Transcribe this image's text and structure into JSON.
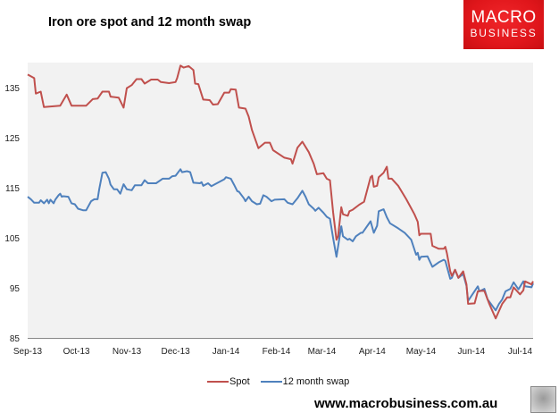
{
  "title": "Iron ore spot and 12 month swap",
  "logo": {
    "line1": "MACRO",
    "line2": "BUSINESS",
    "color": "#e31b1f"
  },
  "footer": {
    "url": "www.macrobusiness.com.au"
  },
  "chart_data": {
    "type": "line",
    "title": "Iron ore spot and 12 month swap",
    "xlabel": "",
    "ylabel": "",
    "xlim": [
      "2013-09-01",
      "2014-07-09"
    ],
    "ylim": [
      85,
      140
    ],
    "yticks": [
      85,
      95,
      105,
      115,
      125,
      135
    ],
    "xticks": [
      {
        "date": "2013-09-01",
        "label": "Sep-13"
      },
      {
        "date": "2013-10-01",
        "label": "Oct-13"
      },
      {
        "date": "2013-11-01",
        "label": "Nov-13"
      },
      {
        "date": "2013-12-01",
        "label": "Dec-13"
      },
      {
        "date": "2014-01-01",
        "label": "Jan-14"
      },
      {
        "date": "2014-02-01",
        "label": "Feb-14"
      },
      {
        "date": "2014-03-01",
        "label": "Mar-14"
      },
      {
        "date": "2014-04-01",
        "label": "Apr-14"
      },
      {
        "date": "2014-05-01",
        "label": "May-14"
      },
      {
        "date": "2014-06-01",
        "label": "Jun-14"
      },
      {
        "date": "2014-07-01",
        "label": "Jul-14"
      }
    ],
    "grid": false,
    "plot_background": "#f2f2f2",
    "legend_position": "bottom",
    "series": [
      {
        "name": "Spot",
        "color": "#c0504d",
        "points": [
          [
            "2013-09-01",
            137.6
          ],
          [
            "2013-09-05",
            136.9
          ],
          [
            "2013-09-06",
            133.8
          ],
          [
            "2013-09-09",
            134.2
          ],
          [
            "2013-09-11",
            131.1
          ],
          [
            "2013-09-21",
            131.4
          ],
          [
            "2013-09-25",
            133.6
          ],
          [
            "2013-09-28",
            131.4
          ],
          [
            "2013-10-07",
            131.4
          ],
          [
            "2013-10-11",
            132.7
          ],
          [
            "2013-10-14",
            132.8
          ],
          [
            "2013-10-17",
            134.2
          ],
          [
            "2013-10-21",
            134.2
          ],
          [
            "2013-10-22",
            133.2
          ],
          [
            "2013-10-27",
            133.0
          ],
          [
            "2013-10-30",
            131.0
          ],
          [
            "2013-11-01",
            134.9
          ],
          [
            "2013-11-04",
            135.5
          ],
          [
            "2013-11-07",
            136.7
          ],
          [
            "2013-11-10",
            136.7
          ],
          [
            "2013-11-12",
            135.8
          ],
          [
            "2013-11-16",
            136.6
          ],
          [
            "2013-11-20",
            136.6
          ],
          [
            "2013-11-22",
            136.1
          ],
          [
            "2013-11-27",
            135.9
          ],
          [
            "2013-12-01",
            136.1
          ],
          [
            "2013-12-02",
            136.9
          ],
          [
            "2013-12-04",
            139.4
          ],
          [
            "2013-12-06",
            139.0
          ],
          [
            "2013-12-09",
            139.3
          ],
          [
            "2013-12-12",
            138.5
          ],
          [
            "2013-12-13",
            135.8
          ],
          [
            "2013-12-15",
            135.7
          ],
          [
            "2013-12-18",
            132.6
          ],
          [
            "2013-12-22",
            132.5
          ],
          [
            "2013-12-24",
            131.6
          ],
          [
            "2013-12-27",
            131.7
          ],
          [
            "2013-12-31",
            134.0
          ],
          [
            "2014-01-03",
            134.0
          ],
          [
            "2014-01-04",
            134.7
          ],
          [
            "2014-01-07",
            134.6
          ],
          [
            "2014-01-09",
            131.0
          ],
          [
            "2014-01-13",
            130.8
          ],
          [
            "2014-01-15",
            129.2
          ],
          [
            "2014-01-17",
            126.5
          ],
          [
            "2014-01-21",
            122.9
          ],
          [
            "2014-01-25",
            124.0
          ],
          [
            "2014-01-28",
            124.0
          ],
          [
            "2014-01-30",
            122.5
          ],
          [
            "2014-02-06",
            121.0
          ],
          [
            "2014-02-10",
            120.7
          ],
          [
            "2014-02-11",
            119.8
          ],
          [
            "2014-02-14",
            123.0
          ],
          [
            "2014-02-17",
            124.2
          ],
          [
            "2014-02-21",
            122.1
          ],
          [
            "2014-02-24",
            119.8
          ],
          [
            "2014-02-26",
            117.7
          ],
          [
            "2014-03-02",
            117.9
          ],
          [
            "2014-03-04",
            116.8
          ],
          [
            "2014-03-06",
            116.5
          ],
          [
            "2014-03-08",
            110.0
          ],
          [
            "2014-03-10",
            104.6
          ],
          [
            "2014-03-11",
            105.3
          ],
          [
            "2014-03-13",
            111.1
          ],
          [
            "2014-03-14",
            109.7
          ],
          [
            "2014-03-17",
            109.4
          ],
          [
            "2014-03-18",
            110.3
          ],
          [
            "2014-03-20",
            110.6
          ],
          [
            "2014-03-24",
            111.6
          ],
          [
            "2014-03-27",
            112.2
          ],
          [
            "2014-03-31",
            117.1
          ],
          [
            "2014-04-01",
            117.4
          ],
          [
            "2014-04-02",
            115.2
          ],
          [
            "2014-04-04",
            115.4
          ],
          [
            "2014-04-05",
            117.1
          ],
          [
            "2014-04-08",
            118.0
          ],
          [
            "2014-04-10",
            119.2
          ],
          [
            "2014-04-11",
            116.8
          ],
          [
            "2014-04-13",
            116.8
          ],
          [
            "2014-04-17",
            115.4
          ],
          [
            "2014-04-22",
            112.7
          ],
          [
            "2014-04-25",
            110.9
          ],
          [
            "2014-04-27",
            109.7
          ],
          [
            "2014-04-29",
            108.2
          ],
          [
            "2014-04-30",
            105.5
          ],
          [
            "2014-05-01",
            105.8
          ],
          [
            "2014-05-07",
            105.8
          ],
          [
            "2014-05-08",
            103.4
          ],
          [
            "2014-05-12",
            102.8
          ],
          [
            "2014-05-15",
            102.8
          ],
          [
            "2014-05-16",
            103.2
          ],
          [
            "2014-05-17",
            101.9
          ],
          [
            "2014-05-19",
            98.3
          ],
          [
            "2014-05-20",
            97.4
          ],
          [
            "2014-05-22",
            98.6
          ],
          [
            "2014-05-24",
            97.0
          ],
          [
            "2014-05-27",
            98.3
          ],
          [
            "2014-05-29",
            95.7
          ],
          [
            "2014-05-30",
            91.8
          ],
          [
            "2014-06-03",
            91.9
          ],
          [
            "2014-06-05",
            94.3
          ],
          [
            "2014-06-07",
            94.4
          ],
          [
            "2014-06-09",
            94.4
          ],
          [
            "2014-06-12",
            91.8
          ],
          [
            "2014-06-16",
            88.9
          ],
          [
            "2014-06-20",
            91.8
          ],
          [
            "2014-06-23",
            93.1
          ],
          [
            "2014-06-25",
            93.1
          ],
          [
            "2014-06-27",
            95.1
          ],
          [
            "2014-07-01",
            93.7
          ],
          [
            "2014-07-03",
            94.5
          ],
          [
            "2014-07-04",
            96.3
          ],
          [
            "2014-07-08",
            95.7
          ],
          [
            "2014-07-09",
            96.3
          ]
        ]
      },
      {
        "name": "12 month swap",
        "color": "#4f81bd",
        "points": [
          [
            "2013-09-01",
            113.2
          ],
          [
            "2013-09-03",
            112.7
          ],
          [
            "2013-09-05",
            112.0
          ],
          [
            "2013-09-08",
            112.0
          ],
          [
            "2013-09-09",
            112.5
          ],
          [
            "2013-09-11",
            111.9
          ],
          [
            "2013-09-13",
            112.6
          ],
          [
            "2013-09-14",
            111.9
          ],
          [
            "2013-09-15",
            112.6
          ],
          [
            "2013-09-17",
            111.9
          ],
          [
            "2013-09-18",
            112.6
          ],
          [
            "2013-09-20",
            113.5
          ],
          [
            "2013-09-21",
            113.8
          ],
          [
            "2013-09-22",
            113.2
          ],
          [
            "2013-09-23",
            113.3
          ],
          [
            "2013-09-26",
            113.2
          ],
          [
            "2013-09-28",
            111.9
          ],
          [
            "2013-09-30",
            111.7
          ],
          [
            "2013-10-02",
            110.8
          ],
          [
            "2013-10-05",
            110.5
          ],
          [
            "2013-10-07",
            110.5
          ],
          [
            "2013-10-10",
            112.3
          ],
          [
            "2013-10-12",
            112.7
          ],
          [
            "2013-10-14",
            112.7
          ],
          [
            "2013-10-15",
            114.7
          ],
          [
            "2013-10-17",
            118.0
          ],
          [
            "2013-10-19",
            118.1
          ],
          [
            "2013-10-21",
            116.8
          ],
          [
            "2013-10-22",
            115.6
          ],
          [
            "2013-10-24",
            114.7
          ],
          [
            "2013-10-26",
            114.7
          ],
          [
            "2013-10-28",
            113.8
          ],
          [
            "2013-10-30",
            115.7
          ],
          [
            "2013-11-01",
            114.7
          ],
          [
            "2013-11-04",
            114.5
          ],
          [
            "2013-11-06",
            115.5
          ],
          [
            "2013-11-10",
            115.5
          ],
          [
            "2013-11-12",
            116.5
          ],
          [
            "2013-11-14",
            115.9
          ],
          [
            "2013-11-19",
            115.9
          ],
          [
            "2013-11-23",
            116.8
          ],
          [
            "2013-11-27",
            116.8
          ],
          [
            "2013-11-29",
            117.3
          ],
          [
            "2013-12-01",
            117.4
          ],
          [
            "2013-12-04",
            118.7
          ],
          [
            "2013-12-05",
            118.1
          ],
          [
            "2013-12-08",
            118.3
          ],
          [
            "2013-12-10",
            118.1
          ],
          [
            "2013-12-12",
            116.0
          ],
          [
            "2013-12-16",
            115.9
          ],
          [
            "2013-12-17",
            116.1
          ],
          [
            "2013-12-18",
            115.4
          ],
          [
            "2013-12-21",
            115.9
          ],
          [
            "2013-12-23",
            115.3
          ],
          [
            "2013-12-31",
            116.7
          ],
          [
            "2014-01-01",
            117.1
          ],
          [
            "2014-01-04",
            116.8
          ],
          [
            "2014-01-06",
            115.6
          ],
          [
            "2014-01-08",
            114.3
          ],
          [
            "2014-01-09",
            114.2
          ],
          [
            "2014-01-12",
            112.9
          ],
          [
            "2014-01-13",
            112.3
          ],
          [
            "2014-01-15",
            113.2
          ],
          [
            "2014-01-17",
            112.3
          ],
          [
            "2014-01-20",
            111.7
          ],
          [
            "2014-01-22",
            111.8
          ],
          [
            "2014-01-24",
            113.5
          ],
          [
            "2014-01-26",
            113.2
          ],
          [
            "2014-01-29",
            112.3
          ],
          [
            "2014-01-31",
            112.6
          ],
          [
            "2014-02-06",
            112.7
          ],
          [
            "2014-02-08",
            112.0
          ],
          [
            "2014-02-11",
            111.7
          ],
          [
            "2014-02-14",
            112.9
          ],
          [
            "2014-02-17",
            114.4
          ],
          [
            "2014-02-19",
            113.2
          ],
          [
            "2014-02-21",
            111.7
          ],
          [
            "2014-02-24",
            110.8
          ],
          [
            "2014-02-25",
            110.4
          ],
          [
            "2014-02-27",
            111.0
          ],
          [
            "2014-03-02",
            110.0
          ],
          [
            "2014-03-04",
            109.2
          ],
          [
            "2014-03-06",
            108.8
          ],
          [
            "2014-03-08",
            104.9
          ],
          [
            "2014-03-10",
            101.2
          ],
          [
            "2014-03-12",
            105.3
          ],
          [
            "2014-03-13",
            107.3
          ],
          [
            "2014-03-14",
            105.3
          ],
          [
            "2014-03-17",
            104.6
          ],
          [
            "2014-03-18",
            104.8
          ],
          [
            "2014-03-20",
            104.3
          ],
          [
            "2014-03-22",
            105.3
          ],
          [
            "2014-03-25",
            106.0
          ],
          [
            "2014-03-26",
            106.0
          ],
          [
            "2014-03-31",
            108.3
          ],
          [
            "2014-04-02",
            106.0
          ],
          [
            "2014-04-04",
            107.4
          ],
          [
            "2014-04-05",
            110.3
          ],
          [
            "2014-04-08",
            110.7
          ],
          [
            "2014-04-10",
            109.1
          ],
          [
            "2014-04-12",
            107.9
          ],
          [
            "2014-04-17",
            106.9
          ],
          [
            "2014-04-21",
            106.0
          ],
          [
            "2014-04-23",
            105.3
          ],
          [
            "2014-04-25",
            104.6
          ],
          [
            "2014-04-28",
            101.6
          ],
          [
            "2014-04-29",
            102.0
          ],
          [
            "2014-04-30",
            100.6
          ],
          [
            "2014-05-01",
            101.2
          ],
          [
            "2014-05-05",
            101.3
          ],
          [
            "2014-05-08",
            99.2
          ],
          [
            "2014-05-12",
            100.1
          ],
          [
            "2014-05-15",
            100.6
          ],
          [
            "2014-05-16",
            100.4
          ],
          [
            "2014-05-19",
            96.8
          ],
          [
            "2014-05-20",
            97.0
          ],
          [
            "2014-05-22",
            98.6
          ],
          [
            "2014-05-24",
            97.0
          ],
          [
            "2014-05-27",
            97.8
          ],
          [
            "2014-05-29",
            95.4
          ],
          [
            "2014-05-30",
            92.4
          ],
          [
            "2014-06-05",
            95.3
          ],
          [
            "2014-06-06",
            94.3
          ],
          [
            "2014-06-09",
            94.8
          ],
          [
            "2014-06-11",
            92.7
          ],
          [
            "2014-06-16",
            90.5
          ],
          [
            "2014-06-18",
            91.8
          ],
          [
            "2014-06-20",
            92.7
          ],
          [
            "2014-06-22",
            94.3
          ],
          [
            "2014-06-25",
            94.8
          ],
          [
            "2014-06-27",
            96.1
          ],
          [
            "2014-06-30",
            94.7
          ],
          [
            "2014-07-03",
            96.3
          ],
          [
            "2014-07-04",
            95.3
          ],
          [
            "2014-07-08",
            95.1
          ],
          [
            "2014-07-09",
            95.9
          ]
        ]
      }
    ]
  }
}
